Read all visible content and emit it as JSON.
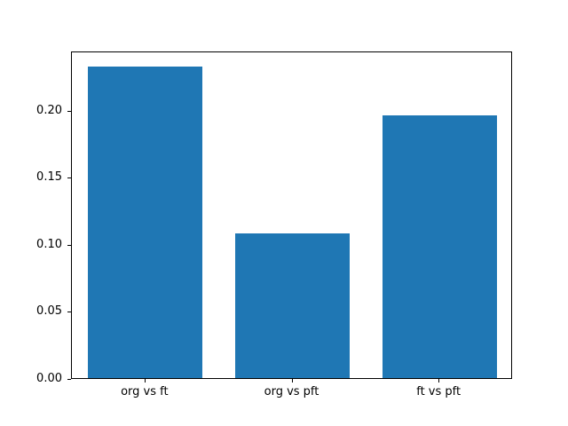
{
  "chart_data": {
    "type": "bar",
    "categories": [
      "org vs ft",
      "org vs pft",
      "ft vs pft"
    ],
    "values": [
      0.232,
      0.108,
      0.196
    ],
    "title": "",
    "xlabel": "",
    "ylabel": "",
    "ylim": [
      0,
      0.244
    ],
    "yticks": [
      0.0,
      0.05,
      0.1,
      0.15,
      0.2
    ],
    "bar_color": "#1f77b4",
    "grid": false,
    "legend": "none"
  }
}
